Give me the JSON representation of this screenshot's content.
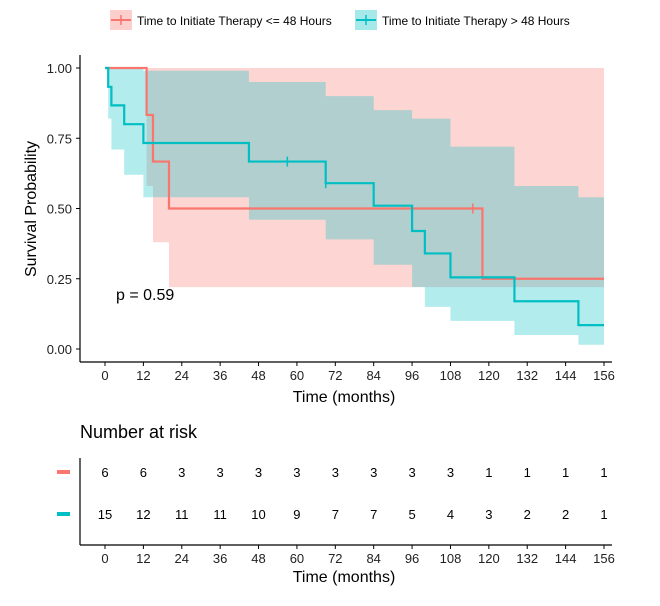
{
  "chart_data": {
    "type": "line",
    "ylabel": "Survival Probability",
    "xlabel": "Time (months)",
    "x_ticks": [
      0,
      12,
      24,
      36,
      48,
      60,
      72,
      84,
      96,
      108,
      120,
      132,
      144,
      156
    ],
    "y_ticks": [
      "0.00",
      "0.25",
      "0.50",
      "0.75",
      "1.00"
    ],
    "xlim": [
      0,
      156
    ],
    "ylim": [
      0,
      1
    ],
    "grid": false,
    "legend_position": "top",
    "p_value_text": "p = 0.59",
    "series": [
      {
        "name": "Time to Initiate Therapy <= 48 Hours",
        "color": "#F8766D",
        "band_color": "#F8766D",
        "steps": [
          [
            0,
            1.0
          ],
          [
            13,
            0.833
          ],
          [
            15,
            0.667
          ],
          [
            20,
            0.5
          ],
          [
            118,
            0.25
          ],
          [
            156,
            0.25
          ]
        ],
        "upper": [
          [
            0,
            1.0
          ],
          [
            156,
            1.0
          ]
        ],
        "lower": [
          [
            0,
            1.0
          ],
          [
            13,
            0.58
          ],
          [
            15,
            0.38
          ],
          [
            20,
            0.22
          ],
          [
            156,
            0.22
          ]
        ],
        "censor_times": [
          115
        ]
      },
      {
        "name": "Time to Initiate Therapy > 48 Hours",
        "color": "#00BFC4",
        "band_color": "#00BFC4",
        "steps": [
          [
            0,
            1.0
          ],
          [
            1,
            0.933
          ],
          [
            2,
            0.867
          ],
          [
            6,
            0.8
          ],
          [
            12,
            0.733
          ],
          [
            45,
            0.667
          ],
          [
            69,
            0.59
          ],
          [
            84,
            0.51
          ],
          [
            96,
            0.42
          ],
          [
            100,
            0.34
          ],
          [
            108,
            0.255
          ],
          [
            128,
            0.17
          ],
          [
            148,
            0.085
          ],
          [
            156,
            0.085
          ]
        ],
        "upper": [
          [
            0,
            1.0
          ],
          [
            12,
            0.99
          ],
          [
            45,
            0.95
          ],
          [
            69,
            0.9
          ],
          [
            84,
            0.85
          ],
          [
            96,
            0.82
          ],
          [
            108,
            0.72
          ],
          [
            128,
            0.58
          ],
          [
            148,
            0.54
          ],
          [
            156,
            0.54
          ]
        ],
        "lower": [
          [
            0,
            1.0
          ],
          [
            1,
            0.82
          ],
          [
            2,
            0.71
          ],
          [
            6,
            0.62
          ],
          [
            12,
            0.54
          ],
          [
            45,
            0.46
          ],
          [
            69,
            0.39
          ],
          [
            84,
            0.3
          ],
          [
            96,
            0.22
          ],
          [
            100,
            0.15
          ],
          [
            108,
            0.1
          ],
          [
            128,
            0.05
          ],
          [
            148,
            0.015
          ],
          [
            156,
            0.015
          ]
        ],
        "censor_times": [
          57,
          69
        ]
      }
    ],
    "risk_table": {
      "title": "Number at risk",
      "times": [
        0,
        12,
        24,
        36,
        48,
        60,
        72,
        84,
        96,
        108,
        120,
        132,
        144,
        156
      ],
      "rows": [
        {
          "color": "#F8766D",
          "counts": [
            6,
            6,
            3,
            3,
            3,
            3,
            3,
            3,
            3,
            3,
            1,
            1,
            1,
            1
          ]
        },
        {
          "color": "#00BFC4",
          "counts": [
            15,
            12,
            11,
            11,
            10,
            9,
            7,
            7,
            5,
            4,
            3,
            2,
            2,
            1
          ]
        }
      ],
      "xlabel": "Time (months)"
    }
  }
}
